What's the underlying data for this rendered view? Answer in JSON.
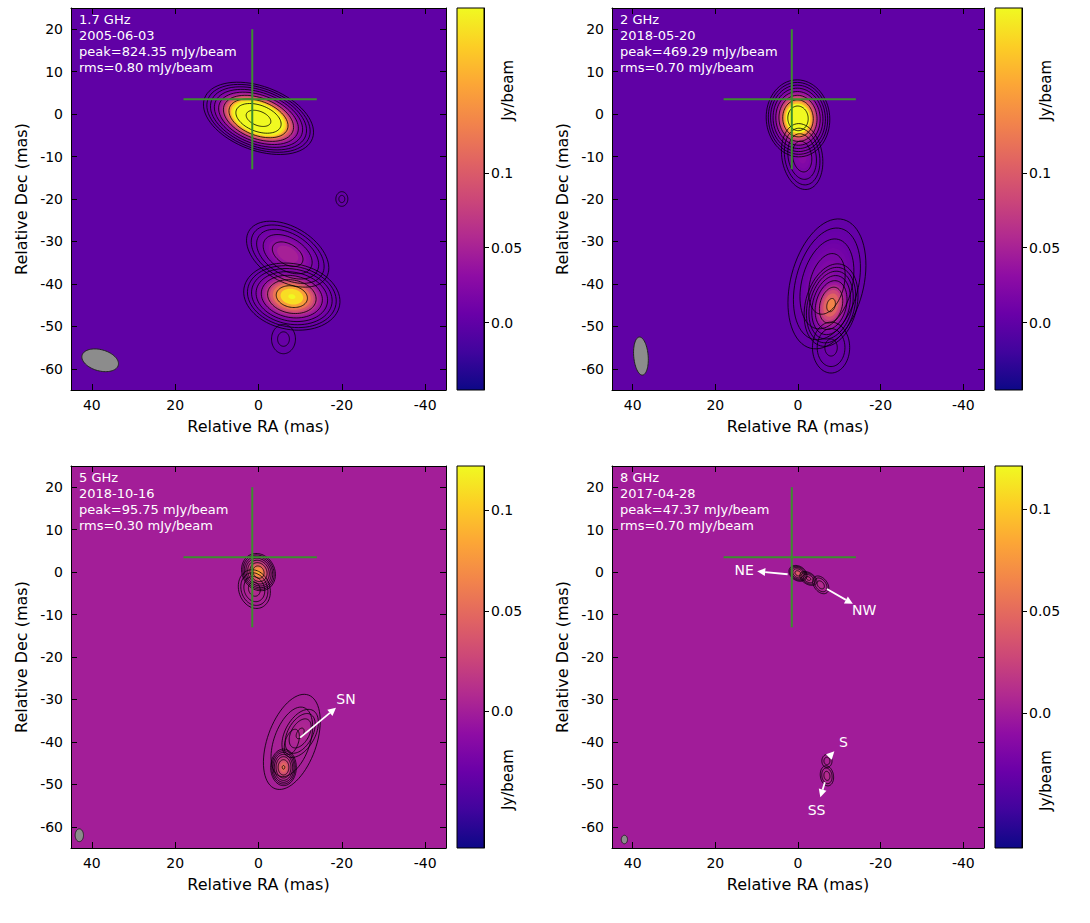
{
  "chart_data": [
    {
      "type": "contour",
      "annotations": [
        "1.7 GHz",
        "2005-06-03",
        "peak=824.35 mJy/beam",
        "rms=0.80 mJy/beam"
      ],
      "xlabel": "Relative RA (mas)",
      "ylabel": "Relative Dec (mas)",
      "xlim": [
        45,
        -45
      ],
      "xticks": [
        40,
        20,
        0,
        -20,
        -40
      ],
      "ylim": [
        -65,
        25
      ],
      "yticks": [
        -60,
        -50,
        -40,
        -30,
        -20,
        -10,
        0,
        10,
        20
      ],
      "components": [
        {
          "x": 0,
          "y": -1,
          "peak": 0.824,
          "major": 9.5,
          "minor": 5.2,
          "pa": 70
        },
        {
          "x": -8,
          "y": -43,
          "peak": 0.25,
          "major": 9,
          "minor": 6,
          "pa": 80
        },
        {
          "x": -7,
          "y": -33,
          "peak": 0.06,
          "major": 10,
          "minor": 6,
          "pa": 60
        },
        {
          "x": -6,
          "y": -53,
          "peak": 0.006,
          "major": 6,
          "minor": 5,
          "pa": 0
        },
        {
          "x": -20,
          "y": -20,
          "peak": 0.006,
          "major": 3,
          "minor": 2.5,
          "pa": 0
        }
      ],
      "contour_levels": [
        0.0024,
        0.0048,
        0.0096,
        0.0192,
        0.0384,
        0.0768,
        0.1536,
        0.3072,
        0.6144
      ],
      "beam": {
        "x": 38,
        "y": -58,
        "major": 9,
        "minor": 5,
        "pa": 75
      },
      "position_cross": {
        "x": 1.5,
        "y": 3.5,
        "x_extent": [
          18,
          -14
        ],
        "y_extent": [
          20,
          -13
        ]
      },
      "colorbar": {
        "label": "Jy/beam",
        "range": [
          -0.045,
          0.21
        ],
        "ticks": [
          {
            "value": 0,
            "label": "0.0"
          },
          0.05,
          0.1
        ]
      }
    },
    {
      "type": "contour",
      "annotations": [
        "2 GHz",
        "2018-05-20",
        "peak=469.29 mJy/beam",
        "rms=0.70 mJy/beam"
      ],
      "xlabel": "Relative RA (mas)",
      "ylabel": "Relative Dec (mas)",
      "xlim": [
        45,
        -45
      ],
      "xticks": [
        40,
        20,
        0,
        -20,
        -40
      ],
      "ylim": [
        -65,
        25
      ],
      "yticks": [
        -60,
        -50,
        -40,
        -30,
        -20,
        -10,
        0,
        10,
        20
      ],
      "components": [
        {
          "x": 0,
          "y": -1,
          "peak": 0.469,
          "major": 6.5,
          "minor": 5.5,
          "pa": 5
        },
        {
          "x": -1,
          "y": -10,
          "peak": 0.03,
          "major": 8,
          "minor": 5,
          "pa": 10
        },
        {
          "x": -8,
          "y": -45,
          "peak": 0.15,
          "major": 8,
          "minor": 5,
          "pa": -15
        },
        {
          "x": -7,
          "y": -40,
          "peak": 0.03,
          "major": 16,
          "minor": 9,
          "pa": -15
        },
        {
          "x": -8,
          "y": -55,
          "peak": 0.01,
          "major": 8,
          "minor": 6,
          "pa": 0
        }
      ],
      "contour_levels": [
        0.0021,
        0.0042,
        0.0084,
        0.0168,
        0.0336,
        0.0672,
        0.1344,
        0.2688
      ],
      "beam": {
        "x": 38,
        "y": -57,
        "major": 9,
        "minor": 3.5,
        "pa": 5
      },
      "position_cross": {
        "x": 1.5,
        "y": 3.5,
        "x_extent": [
          18,
          -14
        ],
        "y_extent": [
          20,
          -13
        ]
      },
      "colorbar": {
        "label": "Jy/beam",
        "range": [
          -0.045,
          0.21
        ],
        "ticks": [
          {
            "value": 0,
            "label": "0.0"
          },
          0.05,
          0.1
        ]
      }
    },
    {
      "type": "contour",
      "annotations": [
        "5 GHz",
        "2018-10-16",
        "peak=95.75 mJy/beam",
        "rms=0.30 mJy/beam"
      ],
      "xlabel": "Relative RA (mas)",
      "ylabel": "Relative Dec (mas)",
      "xlim": [
        45,
        -45
      ],
      "xticks": [
        40,
        20,
        0,
        -20,
        -40
      ],
      "ylim": [
        -65,
        25
      ],
      "yticks": [
        -60,
        -50,
        -40,
        -30,
        -20,
        -10,
        0,
        10,
        20
      ],
      "components": [
        {
          "x": 0,
          "y": 0,
          "peak": 0.0957,
          "major": 3.5,
          "minor": 3,
          "pa": 30
        },
        {
          "x": 1,
          "y": -4,
          "peak": 0.01,
          "major": 5,
          "minor": 4,
          "pa": 20
        },
        {
          "x": -6,
          "y": -46,
          "peak": 0.06,
          "major": 3.5,
          "minor": 2.5,
          "pa": 0
        },
        {
          "x": -10,
          "y": -38,
          "peak": 0.008,
          "major": 7,
          "minor": 4,
          "pa": -30
        },
        {
          "x": -8,
          "y": -40,
          "peak": 0.004,
          "major": 16,
          "minor": 8,
          "pa": -20
        }
      ],
      "contour_levels": [
        0.0009,
        0.0018,
        0.0036,
        0.0072,
        0.0144,
        0.0288,
        0.0576
      ],
      "beam": {
        "x": 43,
        "y": -62,
        "major": 3,
        "minor": 2,
        "pa": 0
      },
      "position_cross": {
        "x": 1.5,
        "y": 3.5,
        "x_extent": [
          18,
          -14
        ],
        "y_extent": [
          20,
          -13
        ]
      },
      "labels": [
        {
          "text": "SN",
          "x": -21,
          "y": -30,
          "from": [
            -10,
            -39
          ]
        }
      ],
      "colorbar": {
        "label": "Jy/beam",
        "range": [
          -0.068,
          0.122
        ],
        "ticks": [
          {
            "value": 0,
            "label": "0.0"
          },
          0.05,
          0.1
        ]
      }
    },
    {
      "type": "contour",
      "annotations": [
        "8 GHz",
        "2017-04-28",
        "peak=47.37 mJy/beam",
        "rms=0.70 mJy/beam"
      ],
      "xlabel": "Relative RA (mas)",
      "ylabel": "Relative Dec (mas)",
      "xlim": [
        45,
        -45
      ],
      "xticks": [
        40,
        20,
        0,
        -20,
        -40
      ],
      "ylim": [
        -65,
        25
      ],
      "yticks": [
        -60,
        -50,
        -40,
        -30,
        -20,
        -10,
        0,
        10,
        20
      ],
      "components": [
        {
          "x": 0,
          "y": -0.3,
          "peak": 0.047,
          "major": 2.2,
          "minor": 1.6,
          "pa": 60
        },
        {
          "x": -2.5,
          "y": -1.5,
          "peak": 0.02,
          "major": 2.5,
          "minor": 1.5,
          "pa": 60
        },
        {
          "x": -5.5,
          "y": -3,
          "peak": 0.012,
          "major": 3,
          "minor": 2,
          "pa": 40
        },
        {
          "x": -7,
          "y": -44.5,
          "peak": 0.006,
          "major": 2.5,
          "minor": 2,
          "pa": 0
        },
        {
          "x": -7,
          "y": -48,
          "peak": 0.012,
          "major": 3,
          "minor": 2,
          "pa": 10
        }
      ],
      "contour_levels": [
        0.0021,
        0.0042,
        0.0084,
        0.0168,
        0.0336
      ],
      "beam": {
        "x": 42,
        "y": -63,
        "major": 2,
        "minor": 1.5,
        "pa": 0
      },
      "position_cross": {
        "x": 1.5,
        "y": 3.5,
        "x_extent": [
          18,
          -14
        ],
        "y_extent": [
          20,
          -13
        ]
      },
      "labels": [
        {
          "text": "NE",
          "x": 13,
          "y": 0.5,
          "from": [
            2.5,
            -0.5
          ]
        },
        {
          "text": "NW",
          "x": -16,
          "y": -9,
          "from": [
            -7,
            -4
          ]
        },
        {
          "text": "S",
          "x": -11,
          "y": -40,
          "from": [
            -7.5,
            -43.5
          ]
        },
        {
          "text": "SS",
          "x": -4.5,
          "y": -56,
          "from": [
            -6.5,
            -49.5
          ]
        }
      ],
      "colorbar": {
        "label": "Jy/beam",
        "range": [
          -0.066,
          0.121
        ],
        "ticks": [
          {
            "value": 0,
            "label": "0.0"
          },
          0.05,
          0.1
        ]
      }
    }
  ]
}
